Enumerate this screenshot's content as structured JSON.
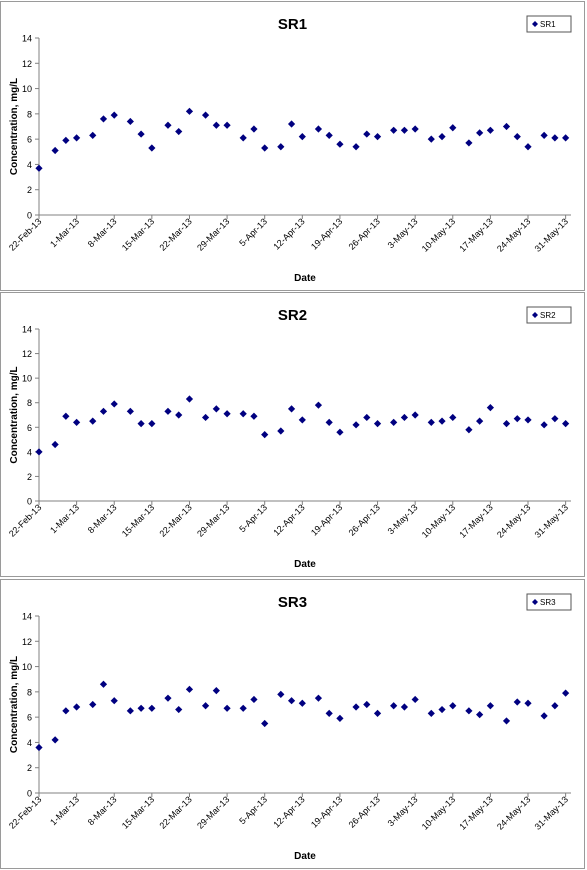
{
  "chart_data": [
    {
      "type": "scatter",
      "title": "SR1",
      "xlabel": "Date",
      "ylabel": "Concentration, mg/L",
      "ylim": [
        0,
        14
      ],
      "y_ticks": [
        0,
        2,
        4,
        6,
        8,
        10,
        12,
        14
      ],
      "x_ticks": [
        "22-Feb-13",
        "1-Mar-13",
        "8-Mar-13",
        "15-Mar-13",
        "22-Mar-13",
        "29-Mar-13",
        "5-Apr-13",
        "12-Apr-13",
        "19-Apr-13",
        "26-Apr-13",
        "3-May-13",
        "10-May-13",
        "17-May-13",
        "24-May-13",
        "31-May-13"
      ],
      "grid": false,
      "legend": "top-right",
      "series": [
        {
          "name": "SR1",
          "color": "#000080",
          "x": [
            "2013-02-22",
            "2013-02-25",
            "2013-02-27",
            "2013-03-01",
            "2013-03-04",
            "2013-03-06",
            "2013-03-08",
            "2013-03-11",
            "2013-03-13",
            "2013-03-15",
            "2013-03-18",
            "2013-03-20",
            "2013-03-22",
            "2013-03-25",
            "2013-03-27",
            "2013-03-29",
            "2013-04-01",
            "2013-04-03",
            "2013-04-05",
            "2013-04-08",
            "2013-04-10",
            "2013-04-12",
            "2013-04-15",
            "2013-04-17",
            "2013-04-19",
            "2013-04-22",
            "2013-04-24",
            "2013-04-26",
            "2013-04-29",
            "2013-05-01",
            "2013-05-03",
            "2013-05-06",
            "2013-05-08",
            "2013-05-10",
            "2013-05-13",
            "2013-05-15",
            "2013-05-17",
            "2013-05-20",
            "2013-05-22",
            "2013-05-24",
            "2013-05-27",
            "2013-05-29",
            "2013-05-31"
          ],
          "y": [
            3.7,
            5.1,
            5.9,
            6.1,
            6.3,
            7.6,
            7.9,
            7.4,
            6.4,
            5.3,
            7.1,
            6.6,
            8.2,
            7.9,
            7.1,
            7.1,
            6.1,
            6.8,
            5.3,
            5.4,
            7.2,
            6.2,
            6.8,
            6.3,
            5.6,
            5.4,
            6.4,
            6.2,
            6.7,
            6.7,
            6.8,
            6.0,
            6.2,
            6.9,
            5.7,
            6.5,
            6.7,
            7.0,
            6.2,
            5.4,
            6.3,
            6.1,
            6.1
          ]
        }
      ]
    },
    {
      "type": "scatter",
      "title": "SR2",
      "xlabel": "Date",
      "ylabel": "Concentration, mg/L",
      "ylim": [
        0,
        14
      ],
      "y_ticks": [
        0,
        2,
        4,
        6,
        8,
        10,
        12,
        14
      ],
      "x_ticks": [
        "22-Feb-13",
        "1-Mar-13",
        "8-Mar-13",
        "15-Mar-13",
        "22-Mar-13",
        "29-Mar-13",
        "5-Apr-13",
        "12-Apr-13",
        "19-Apr-13",
        "26-Apr-13",
        "3-May-13",
        "10-May-13",
        "17-May-13",
        "24-May-13",
        "31-May-13"
      ],
      "grid": false,
      "legend": "top-right",
      "series": [
        {
          "name": "SR2",
          "color": "#000080",
          "x": [
            "2013-02-22",
            "2013-02-25",
            "2013-02-27",
            "2013-03-01",
            "2013-03-04",
            "2013-03-06",
            "2013-03-08",
            "2013-03-11",
            "2013-03-13",
            "2013-03-15",
            "2013-03-18",
            "2013-03-20",
            "2013-03-22",
            "2013-03-25",
            "2013-03-27",
            "2013-03-29",
            "2013-04-01",
            "2013-04-03",
            "2013-04-05",
            "2013-04-08",
            "2013-04-10",
            "2013-04-12",
            "2013-04-15",
            "2013-04-17",
            "2013-04-19",
            "2013-04-22",
            "2013-04-24",
            "2013-04-26",
            "2013-04-29",
            "2013-05-01",
            "2013-05-03",
            "2013-05-06",
            "2013-05-08",
            "2013-05-10",
            "2013-05-13",
            "2013-05-15",
            "2013-05-17",
            "2013-05-20",
            "2013-05-22",
            "2013-05-24",
            "2013-05-27",
            "2013-05-29",
            "2013-05-31"
          ],
          "y": [
            4.0,
            4.6,
            6.9,
            6.4,
            6.5,
            7.3,
            7.9,
            7.3,
            6.3,
            6.3,
            7.3,
            7.0,
            8.3,
            6.8,
            7.5,
            7.1,
            7.1,
            6.9,
            5.4,
            5.7,
            7.5,
            6.6,
            7.8,
            6.4,
            5.6,
            6.2,
            6.8,
            6.3,
            6.4,
            6.8,
            7.0,
            6.4,
            6.5,
            6.8,
            5.8,
            6.5,
            7.6,
            6.3,
            6.7,
            6.6,
            6.2,
            6.7,
            6.3
          ]
        }
      ]
    },
    {
      "type": "scatter",
      "title": "SR3",
      "xlabel": "Date",
      "ylabel": "Concentration, mg/L",
      "ylim": [
        0,
        14
      ],
      "y_ticks": [
        0,
        2,
        4,
        6,
        8,
        10,
        12,
        14
      ],
      "x_ticks": [
        "22-Feb-13",
        "1-Mar-13",
        "8-Mar-13",
        "15-Mar-13",
        "22-Mar-13",
        "29-Mar-13",
        "5-Apr-13",
        "12-Apr-13",
        "19-Apr-13",
        "26-Apr-13",
        "3-May-13",
        "10-May-13",
        "17-May-13",
        "24-May-13",
        "31-May-13"
      ],
      "grid": false,
      "legend": "top-right",
      "series": [
        {
          "name": "SR3",
          "color": "#000080",
          "x": [
            "2013-02-22",
            "2013-02-25",
            "2013-02-27",
            "2013-03-01",
            "2013-03-04",
            "2013-03-06",
            "2013-03-08",
            "2013-03-11",
            "2013-03-13",
            "2013-03-15",
            "2013-03-18",
            "2013-03-20",
            "2013-03-22",
            "2013-03-25",
            "2013-03-27",
            "2013-03-29",
            "2013-04-01",
            "2013-04-03",
            "2013-04-05",
            "2013-04-08",
            "2013-04-10",
            "2013-04-12",
            "2013-04-15",
            "2013-04-17",
            "2013-04-19",
            "2013-04-22",
            "2013-04-24",
            "2013-04-26",
            "2013-04-29",
            "2013-05-01",
            "2013-05-03",
            "2013-05-06",
            "2013-05-08",
            "2013-05-10",
            "2013-05-13",
            "2013-05-15",
            "2013-05-17",
            "2013-05-20",
            "2013-05-22",
            "2013-05-24",
            "2013-05-27",
            "2013-05-29",
            "2013-05-31"
          ],
          "y": [
            3.6,
            4.2,
            6.5,
            6.8,
            7.0,
            8.6,
            7.3,
            6.5,
            6.7,
            6.7,
            7.5,
            6.6,
            8.2,
            6.9,
            8.1,
            6.7,
            6.7,
            7.4,
            5.5,
            7.8,
            7.3,
            7.1,
            7.5,
            6.3,
            5.9,
            6.8,
            7.0,
            6.3,
            6.9,
            6.8,
            7.4,
            6.3,
            6.6,
            6.9,
            6.5,
            6.2,
            6.9,
            5.7,
            7.2,
            7.1,
            6.1,
            6.9,
            7.9
          ]
        }
      ]
    }
  ]
}
